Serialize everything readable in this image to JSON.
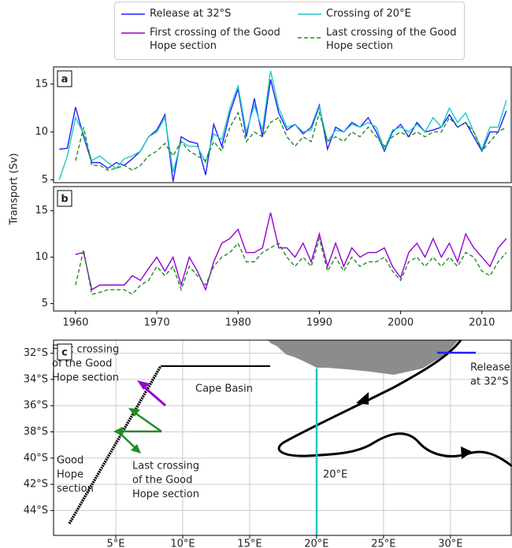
{
  "chart_data": [
    {
      "type": "line",
      "panel_label": "a",
      "ylabel": "Transport (Sv)",
      "x": [
        1958,
        1959,
        1960,
        1961,
        1962,
        1963,
        1964,
        1965,
        1966,
        1967,
        1968,
        1969,
        1970,
        1971,
        1972,
        1973,
        1974,
        1975,
        1976,
        1977,
        1978,
        1979,
        1980,
        1981,
        1982,
        1983,
        1984,
        1985,
        1986,
        1987,
        1988,
        1989,
        1990,
        1991,
        1992,
        1993,
        1994,
        1995,
        1996,
        1997,
        1998,
        1999,
        2000,
        2001,
        2002,
        2003,
        2004,
        2005,
        2006,
        2007,
        2008,
        2009,
        2010,
        2011,
        2012,
        2013
      ],
      "xlim": [
        1957.3,
        2013.7
      ],
      "ylim": [
        4.7,
        16.8
      ],
      "yticks": [
        5,
        10,
        15
      ],
      "series": [
        {
          "name": "Release at 32°S",
          "color": "#1f1fff",
          "dash": false,
          "values": [
            8.2,
            8.3,
            12.6,
            9.5,
            6.8,
            6.8,
            6.2,
            6.8,
            6.5,
            7.2,
            8,
            9.5,
            10.2,
            11.8,
            4.8,
            9.5,
            9.0,
            8.8,
            5.5,
            10.8,
            8.5,
            12,
            14.5,
            9.5,
            13.5,
            9.5,
            15.5,
            12,
            10.2,
            10.8,
            9.8,
            10.5,
            12.8,
            8.2,
            10.5,
            10,
            11,
            10.5,
            11.5,
            10,
            8,
            10,
            10.8,
            9.5,
            11,
            10,
            10.2,
            10.5,
            11.8,
            10.5,
            11,
            9.5,
            8,
            10,
            10,
            12.2
          ]
        },
        {
          "name": "Crossing of 20°E",
          "color": "#1fc8c8",
          "dash": false,
          "values": [
            5.0,
            7.5,
            11.5,
            9.8,
            7.0,
            7.5,
            6.8,
            6.2,
            7.2,
            7.5,
            8.0,
            9.5,
            10.0,
            11.5,
            5.8,
            9.0,
            8.5,
            8.5,
            6.8,
            9.8,
            9.2,
            12.5,
            14.8,
            10.0,
            12.8,
            10.2,
            16.4,
            12.5,
            10.5,
            10.8,
            10.0,
            10.2,
            12.6,
            9.0,
            10.2,
            10.0,
            10.8,
            10.5,
            11.0,
            10.5,
            8.2,
            10.2,
            10.5,
            10.0,
            10.8,
            10.0,
            11.5,
            10.5,
            12.5,
            11.0,
            12.0,
            10.0,
            8.2,
            10.5,
            10.5,
            13.3
          ]
        },
        {
          "name": "Last crossing of the Good Hope section",
          "color": "#228b22",
          "dash": true,
          "values": [
            null,
            null,
            7.0,
            10.5,
            6.5,
            6.5,
            6.0,
            6.2,
            6.5,
            6.0,
            6.5,
            7.5,
            8.0,
            8.8,
            7.5,
            9.0,
            8.0,
            7.5,
            7.0,
            9.0,
            8.0,
            10.5,
            12.0,
            9.0,
            10.0,
            9.5,
            11.0,
            11.5,
            9.5,
            8.5,
            9.5,
            9.0,
            12.0,
            9.0,
            9.5,
            9.0,
            10.0,
            9.5,
            10.5,
            9.5,
            8.5,
            9.5,
            10.0,
            9.5,
            10.0,
            9.5,
            10.0,
            10.0,
            11.5,
            10.5,
            11.0,
            10.0,
            8.0,
            9.0,
            10.0,
            10.5
          ]
        }
      ]
    },
    {
      "type": "line",
      "panel_label": "b",
      "x": [
        1960,
        1961,
        1962,
        1963,
        1964,
        1965,
        1966,
        1967,
        1968,
        1969,
        1970,
        1971,
        1972,
        1973,
        1974,
        1975,
        1976,
        1977,
        1978,
        1979,
        1980,
        1981,
        1982,
        1983,
        1984,
        1985,
        1986,
        1987,
        1988,
        1989,
        1990,
        1991,
        1992,
        1993,
        1994,
        1995,
        1996,
        1997,
        1998,
        1999,
        2000,
        2001,
        2002,
        2003,
        2004,
        2005,
        2006,
        2007,
        2008,
        2009,
        2010,
        2011,
        2012,
        2013
      ],
      "xlim": [
        1957.3,
        2013.7
      ],
      "xticks": [
        1960,
        1970,
        1980,
        1990,
        2000,
        2010
      ],
      "ylim": [
        4.2,
        17.6
      ],
      "yticks": [
        5,
        10,
        15
      ],
      "series": [
        {
          "name": "First crossing of the Good Hope section",
          "color": "#9400d3",
          "dash": false,
          "values": [
            10.3,
            10.5,
            6.5,
            7.0,
            7.0,
            7.0,
            7.0,
            8.0,
            7.5,
            8.8,
            10.0,
            8.5,
            10.0,
            7.0,
            10.0,
            8.5,
            6.5,
            9.5,
            11.5,
            12.0,
            13.0,
            10.5,
            10.5,
            11.0,
            14.8,
            11.0,
            11.0,
            10.0,
            11.5,
            9.5,
            12.5,
            9.0,
            11.5,
            9.0,
            11.0,
            10.0,
            10.5,
            10.5,
            11.0,
            9.0,
            7.8,
            10.5,
            11.5,
            10.0,
            12.0,
            10.0,
            11.5,
            9.5,
            12.5,
            11.0,
            10.0,
            9.0,
            11.0,
            12.0
          ]
        },
        {
          "color": "#228b22",
          "dash": true,
          "values": [
            7.0,
            10.8,
            6.0,
            6.2,
            6.5,
            6.5,
            6.5,
            6.0,
            7.0,
            7.5,
            9.0,
            8.0,
            9.0,
            6.5,
            9.0,
            8.0,
            7.0,
            9.0,
            10.0,
            10.5,
            11.5,
            9.5,
            9.5,
            10.5,
            11.0,
            11.5,
            10.0,
            9.0,
            10.0,
            9.0,
            12.0,
            8.5,
            10.0,
            8.5,
            10.0,
            9.0,
            9.5,
            9.5,
            10.0,
            8.5,
            7.5,
            9.5,
            10.0,
            9.0,
            10.0,
            9.0,
            10.0,
            9.0,
            10.5,
            10.0,
            8.5,
            8.0,
            9.5,
            10.5
          ]
        }
      ]
    },
    {
      "type": "map",
      "panel_label": "c",
      "grid": true,
      "xlim": [
        0.35,
        34.6
      ],
      "ylim": [
        -45.9,
        -31.0
      ],
      "xticks": [
        {
          "value": 5,
          "label": "5°E"
        },
        {
          "value": 10,
          "label": "10°E"
        },
        {
          "value": 15,
          "label": "15°E"
        },
        {
          "value": 20,
          "label": "20°E"
        },
        {
          "value": 25,
          "label": "25°E"
        },
        {
          "value": 30,
          "label": "30°E"
        }
      ],
      "yticks": [
        {
          "value": -32,
          "label": "32°S"
        },
        {
          "value": -34,
          "label": "34°S"
        },
        {
          "value": -36,
          "label": "36°S"
        },
        {
          "value": -38,
          "label": "38°S"
        },
        {
          "value": -40,
          "label": "40°S"
        },
        {
          "value": -42,
          "label": "42°S"
        },
        {
          "value": -44,
          "label": "44°S"
        }
      ],
      "annotations": [
        {
          "lines": [
            "First crossing",
            "of the Good",
            "Hope section"
          ],
          "color": "#9400d3"
        },
        {
          "lines": [
            "Last crossing",
            "of the Good",
            "Hope section"
          ],
          "color": "#228b22"
        },
        {
          "lines": [
            "Good",
            "Hope",
            "section"
          ],
          "color": "#000000"
        },
        {
          "lines": [
            "Cape Basin"
          ],
          "color": "#8c8c8c"
        },
        {
          "lines": [
            "Release",
            "at 32°S"
          ],
          "color": "#1f1fff"
        },
        {
          "lines": [
            "20°E"
          ],
          "color": "#1fc8c8"
        }
      ]
    }
  ]
}
